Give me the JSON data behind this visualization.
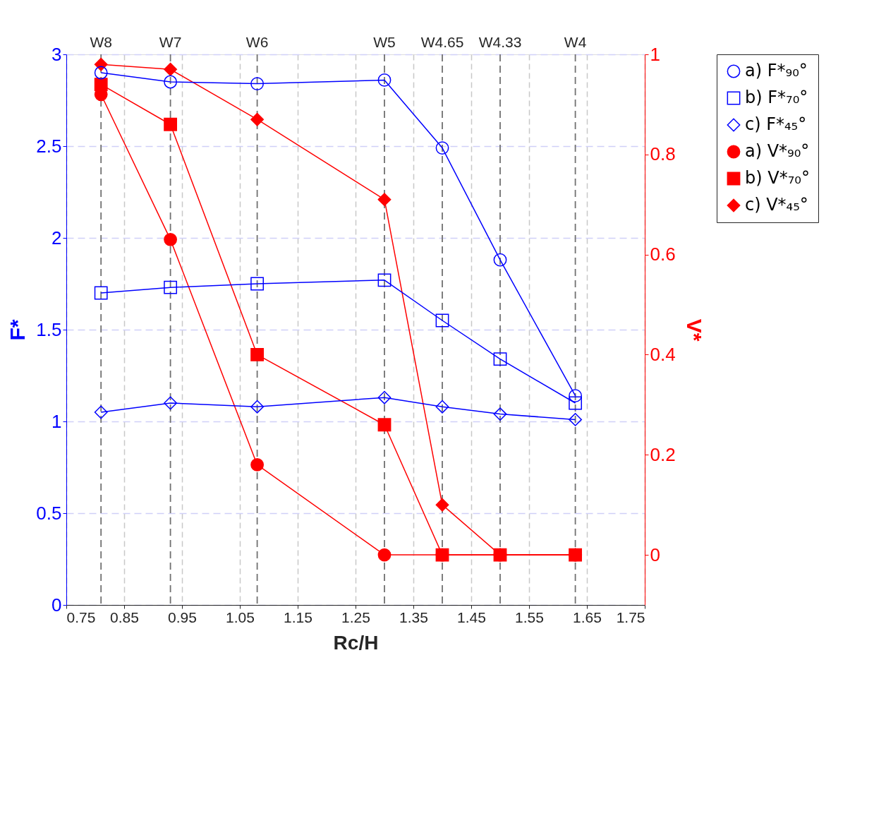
{
  "chart_data": {
    "type": "line",
    "xlabel": "Rc/H",
    "ylabel": "F*",
    "y2label": "V*",
    "x": [
      0.81,
      0.93,
      1.08,
      1.3,
      1.4,
      1.5,
      1.63
    ],
    "series": [
      {
        "name": "a) F*₉₀°",
        "color": "#0000ff",
        "marker": "circle",
        "values": [
          2.9,
          2.85,
          2.84,
          2.86,
          2.49,
          1.88,
          1.14
        ]
      },
      {
        "name": "b) F*₇₀°",
        "color": "#0000ff",
        "marker": "square",
        "values": [
          1.7,
          1.73,
          1.75,
          1.77,
          1.55,
          1.34,
          1.1
        ]
      },
      {
        "name": "c) F*₄₅°",
        "color": "#0000ff",
        "marker": "diamond",
        "values": [
          1.05,
          1.1,
          1.08,
          1.13,
          1.08,
          1.04,
          1.01
        ]
      },
      {
        "name": "a) V*₉₀°",
        "color": "#ff0000",
        "marker": "circle",
        "axis": "y2",
        "values": [
          0.92,
          0.63,
          0.18,
          0,
          0,
          0,
          0
        ]
      },
      {
        "name": "b) V*₇₀°",
        "color": "#ff0000",
        "marker": "square",
        "axis": "y2",
        "values": [
          0.94,
          0.86,
          0.4,
          0.26,
          0,
          0,
          0
        ]
      },
      {
        "name": "c) V*₄₅°",
        "color": "#ff0000",
        "marker": "diamond",
        "axis": "y2",
        "values": [
          0.98,
          0.97,
          0.87,
          0.71,
          0.1,
          0,
          0
        ]
      }
    ],
    "xlim": [
      0.75,
      1.75
    ],
    "xticks": [
      0.75,
      0.85,
      0.95,
      1.05,
      1.15,
      1.25,
      1.35,
      1.45,
      1.55,
      1.65,
      1.75
    ],
    "ref_lines": [
      {
        "axis": "x",
        "value": 0.81,
        "label": "W8",
        "line_style": "dashed",
        "color": "#707070"
      },
      {
        "axis": "x",
        "value": 0.93,
        "label": "W7",
        "line_style": "dashed",
        "color": "#707070"
      },
      {
        "axis": "x",
        "value": 1.08,
        "label": "W6",
        "line_style": "dashed",
        "color": "#707070"
      },
      {
        "axis": "x",
        "value": 1.3,
        "label": "W5",
        "line_style": "dashed",
        "color": "#707070"
      },
      {
        "axis": "x",
        "value": 1.4,
        "label": "W4.65",
        "line_style": "dashed",
        "color": "#707070"
      },
      {
        "axis": "x",
        "value": 1.5,
        "label": "W4.33",
        "line_style": "dashed",
        "color": "#707070"
      },
      {
        "axis": "x",
        "value": 1.63,
        "label": "W4",
        "line_style": "dashed",
        "color": "#707070"
      }
    ],
    "ylim": [
      0,
      3
    ],
    "yticks": [
      0,
      0.5,
      1,
      1.5,
      2,
      2.5,
      3
    ],
    "y2lim": [
      -0.1,
      1
    ],
    "y2ticks": [
      0,
      0.2,
      0.4,
      0.6,
      0.8,
      1
    ],
    "grid": true,
    "legend": "right",
    "line_style": "solid"
  }
}
